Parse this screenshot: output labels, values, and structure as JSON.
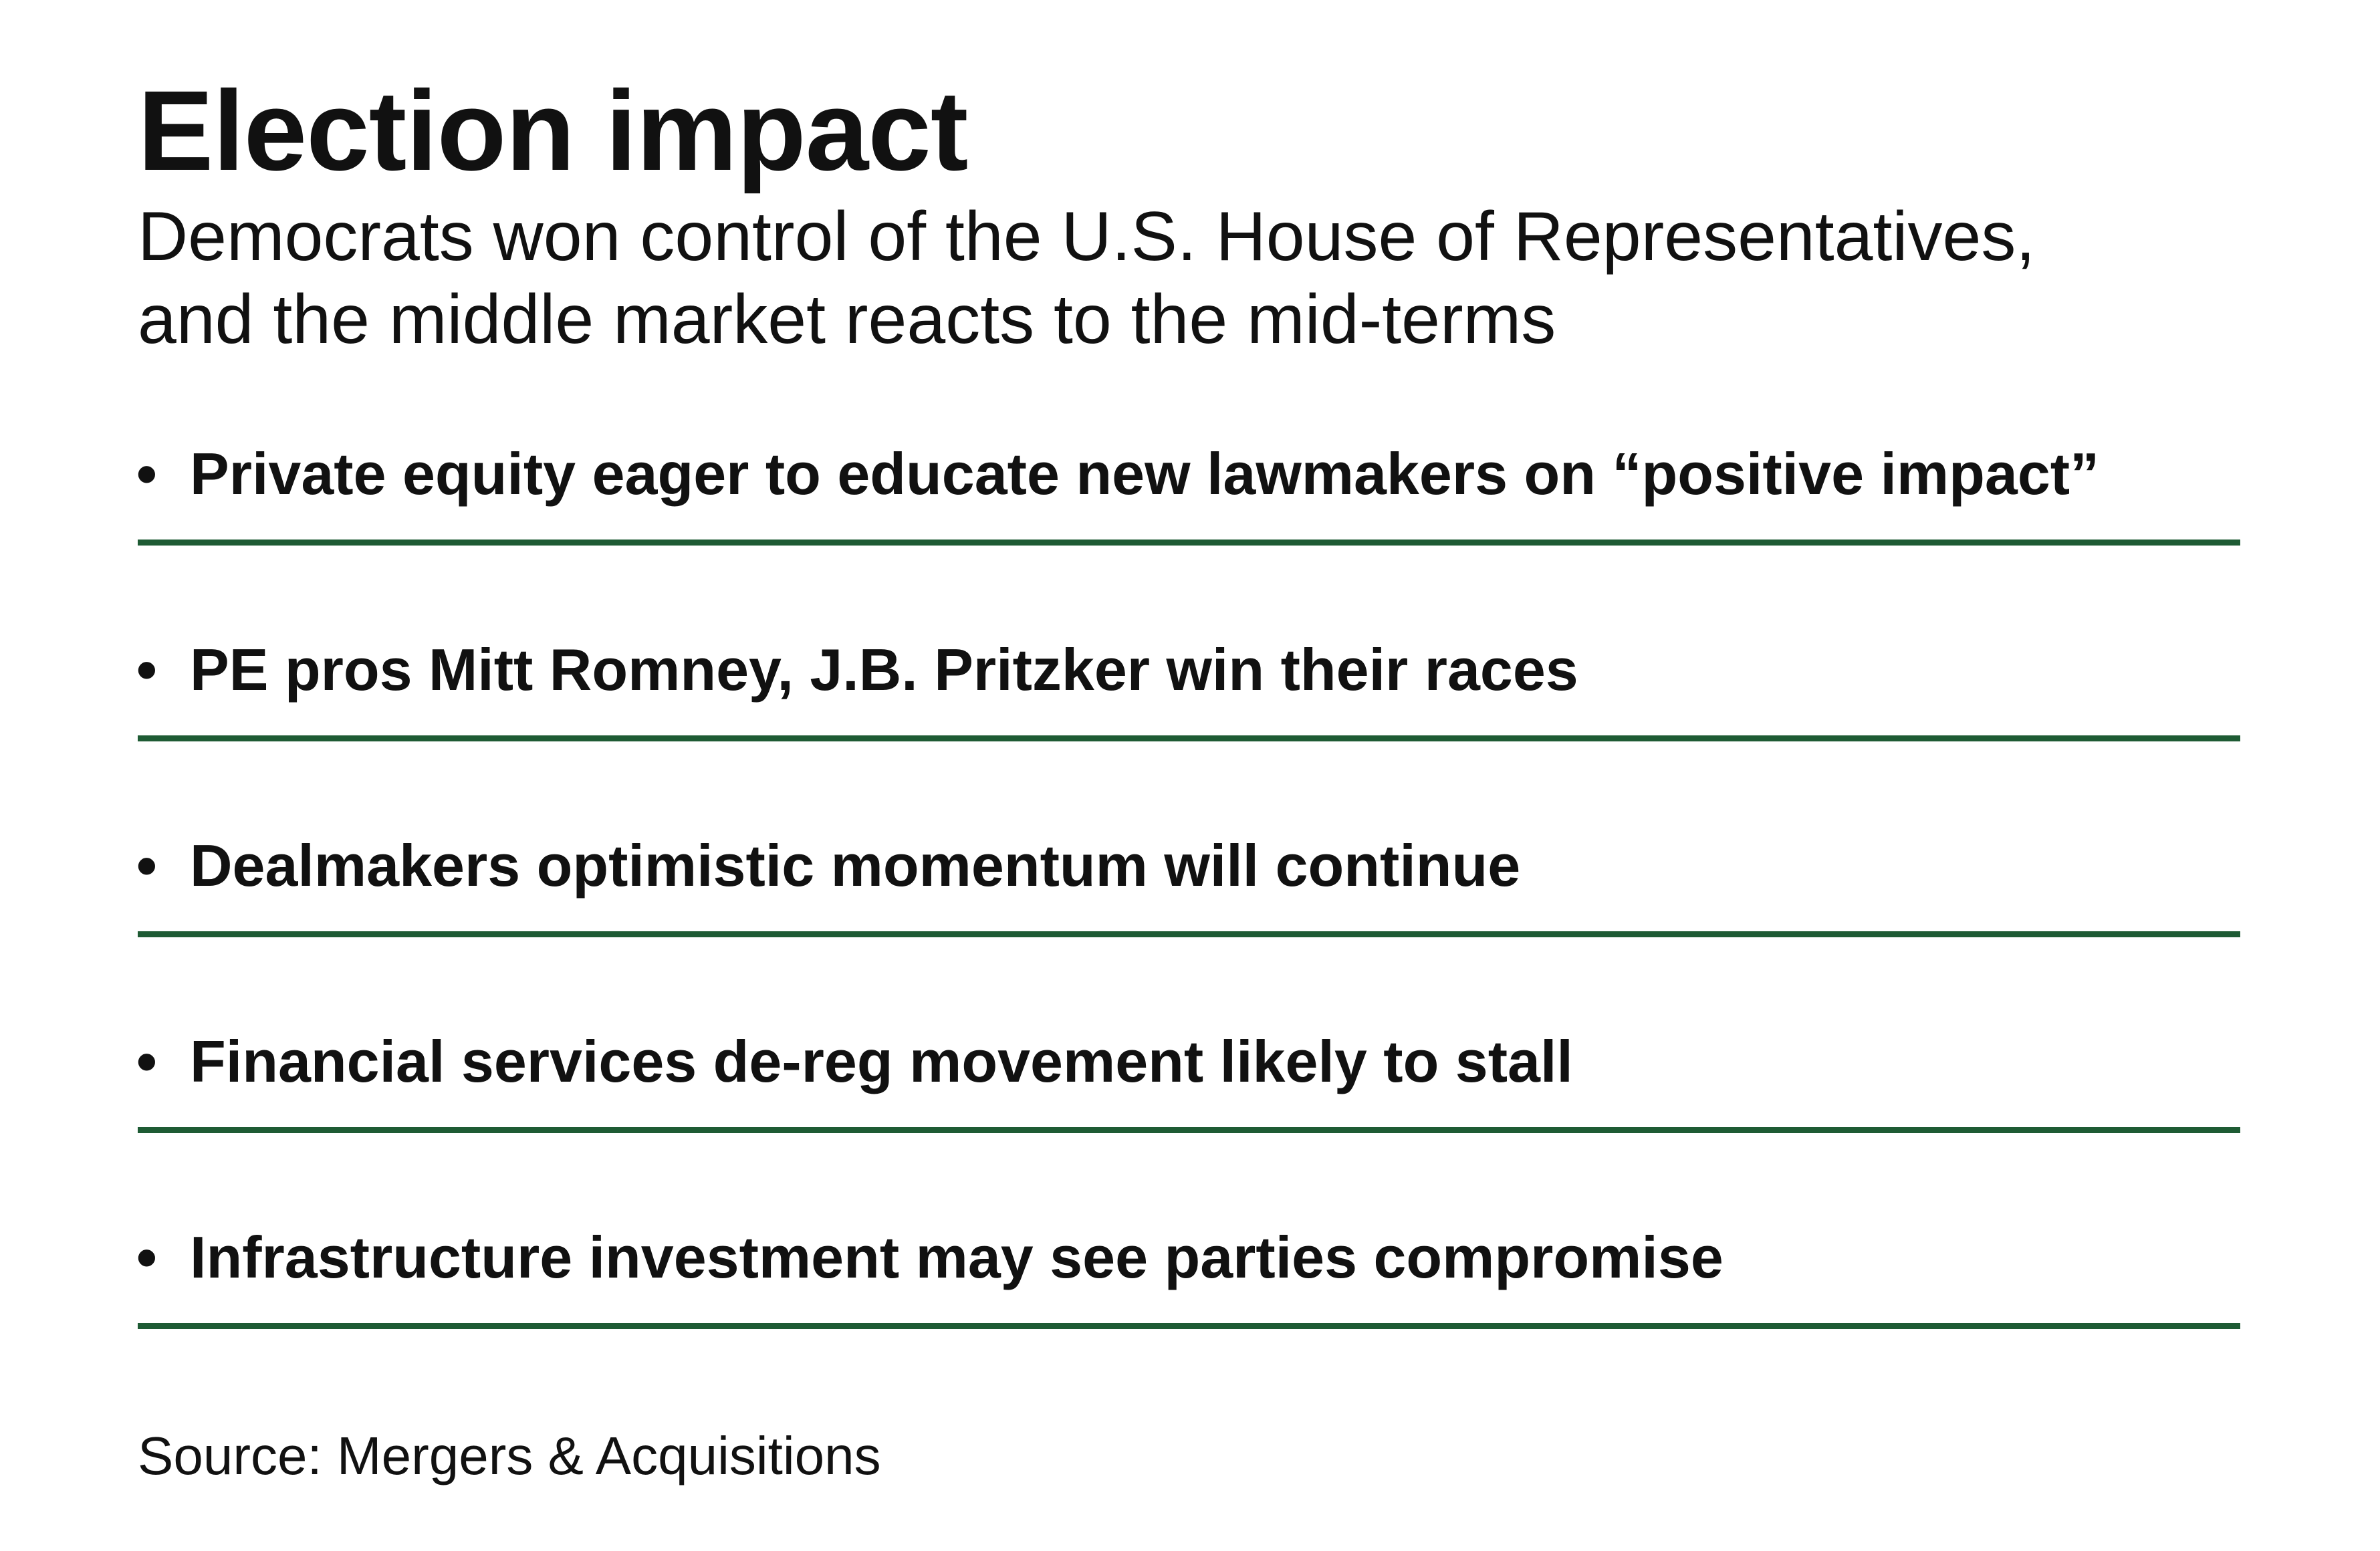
{
  "header": {
    "title": "Election impact",
    "subtitle_lines": [
      "Democrats won control of the U.S. House of Representatives,",
      "and the middle market reacts to the mid-terms"
    ]
  },
  "bullets": [
    {
      "text": "Private equity eager to educate new lawmakers on “positive impact”"
    },
    {
      "text": "PE pros Mitt Romney, J.B. Pritzker win their races"
    },
    {
      "text": "Dealmakers optimistic momentum will continue"
    },
    {
      "text": "Financial services de-reg movement likely to stall"
    },
    {
      "text": "Infrastructure investment may see parties compromise"
    }
  ],
  "bullet_glyph": "•",
  "footer": {
    "source": "Source: Mergers & Acquisitions"
  },
  "colors": {
    "rule": "#1e5b34",
    "text": "#111111",
    "background": "#ffffff"
  }
}
